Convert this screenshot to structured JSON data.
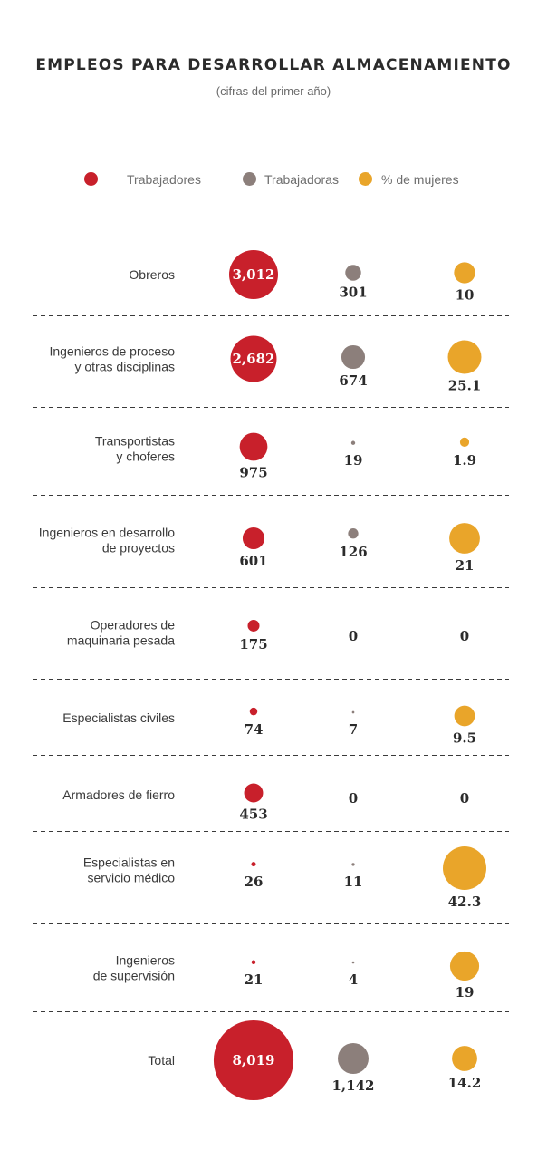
{
  "header": {
    "title": "EMPLEOS PARA DESARROLLAR ALMACENAMIENTO",
    "subtitle": "(cifras del primer año)"
  },
  "legend": [
    {
      "label": "Trabajadores",
      "color": "#c8202b",
      "icon": "red-circle-icon"
    },
    {
      "label": "Trabajadoras",
      "color": "#8c7f7b",
      "icon": "gray-circle-icon"
    },
    {
      "label": "% de mujeres",
      "color": "#e9a52a",
      "icon": "orange-circle-icon"
    }
  ],
  "chart_data": {
    "type": "bubble-table",
    "title": "EMPLEOS PARA DESARROLLAR ALMACENAMIENTO",
    "subtitle": "(cifras del primer año)",
    "series": [
      {
        "name": "Trabajadores",
        "color": "#c8202b",
        "key": "men"
      },
      {
        "name": "Trabajadoras",
        "color": "#8c7f7b",
        "key": "women"
      },
      {
        "name": "% de mujeres",
        "color": "#e9a52a",
        "key": "pct"
      }
    ],
    "rows": [
      {
        "label": [
          "Obreros"
        ],
        "men": 3012,
        "men_text": "3,012",
        "women": 301,
        "women_text": "301",
        "pct": 10,
        "pct_text": "10"
      },
      {
        "label": [
          "Ingenieros de proceso",
          "y otras disciplinas"
        ],
        "men": 2682,
        "men_text": "2,682",
        "women": 674,
        "women_text": "674",
        "pct": 25.1,
        "pct_text": "25.1"
      },
      {
        "label": [
          "Transportistas",
          "y choferes"
        ],
        "men": 975,
        "men_text": "975",
        "women": 19,
        "women_text": "19",
        "pct": 1.9,
        "pct_text": "1.9"
      },
      {
        "label": [
          "Ingenieros en desarrollo",
          "de proyectos"
        ],
        "men": 601,
        "men_text": "601",
        "women": 126,
        "women_text": "126",
        "pct": 21,
        "pct_text": "21"
      },
      {
        "label": [
          "Operadores de",
          "maquinaria pesada"
        ],
        "men": 175,
        "men_text": "175",
        "women": 0,
        "women_text": "0",
        "pct": 0,
        "pct_text": "0"
      },
      {
        "label": [
          "Especialistas civiles"
        ],
        "men": 74,
        "men_text": "74",
        "women": 7,
        "women_text": "7",
        "pct": 9.5,
        "pct_text": "9.5"
      },
      {
        "label": [
          "Armadores de fierro"
        ],
        "men": 453,
        "men_text": "453",
        "women": 0,
        "women_text": "0",
        "pct": 0,
        "pct_text": "0"
      },
      {
        "label": [
          "Especialistas en",
          "servicio médico"
        ],
        "men": 26,
        "men_text": "26",
        "women": 11,
        "women_text": "11",
        "pct": 42.3,
        "pct_text": "42.3"
      },
      {
        "label": [
          "Ingenieros",
          "de supervisión"
        ],
        "men": 21,
        "men_text": "21",
        "women": 4,
        "women_text": "4",
        "pct": 19,
        "pct_text": "19"
      },
      {
        "label": [
          "Total"
        ],
        "men": 8019,
        "men_text": "8,019",
        "women": 1142,
        "women_text": "1,142",
        "pct": 14.2,
        "pct_text": "14.2"
      }
    ]
  }
}
